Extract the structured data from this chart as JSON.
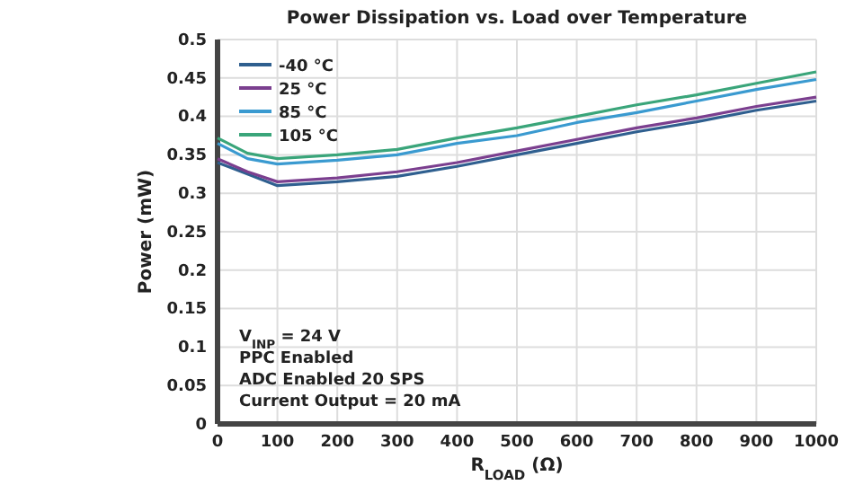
{
  "chart_data": {
    "type": "line",
    "title": "Power Dissipation vs. Load over Temperature",
    "xlabel": "R$_{LOAD}$ (Ω)",
    "ylabel": "Power (mW)",
    "x": [
      0,
      50,
      100,
      200,
      300,
      400,
      500,
      600,
      700,
      800,
      900,
      1000
    ],
    "series": [
      {
        "name": "-40 °C",
        "color": "#2f5f8f",
        "values": [
          0.34,
          0.325,
          0.31,
          0.315,
          0.322,
          0.335,
          0.35,
          0.365,
          0.38,
          0.393,
          0.408,
          0.42
        ]
      },
      {
        "name": "25 °C",
        "color": "#7b3f8f",
        "values": [
          0.345,
          0.328,
          0.315,
          0.32,
          0.328,
          0.34,
          0.355,
          0.37,
          0.385,
          0.398,
          0.413,
          0.425
        ]
      },
      {
        "name": "85 °C",
        "color": "#3a9ad0",
        "values": [
          0.365,
          0.345,
          0.338,
          0.343,
          0.35,
          0.365,
          0.375,
          0.392,
          0.405,
          0.42,
          0.435,
          0.448
        ]
      },
      {
        "name": "105 °C",
        "color": "#3aa57a",
        "values": [
          0.372,
          0.352,
          0.345,
          0.35,
          0.357,
          0.372,
          0.385,
          0.4,
          0.415,
          0.428,
          0.443,
          0.458
        ]
      }
    ],
    "xlim": [
      0,
      1000
    ],
    "xticks": [
      0,
      100,
      200,
      300,
      400,
      500,
      600,
      700,
      800,
      900,
      1000
    ],
    "ylim": [
      0,
      0.5
    ],
    "yticks": [
      0,
      0.05,
      0.1,
      0.15,
      0.2,
      0.25,
      0.3,
      0.35,
      0.4,
      0.45,
      0.5
    ],
    "annotations": [
      "V$_{INP}$ = 24 V",
      "PPC Enabled",
      "ADC Enabled 20 SPS",
      "Current Output = 20 mA"
    ],
    "grid": true,
    "legend": "top left",
    "marker": "none",
    "line_style": "solid"
  }
}
